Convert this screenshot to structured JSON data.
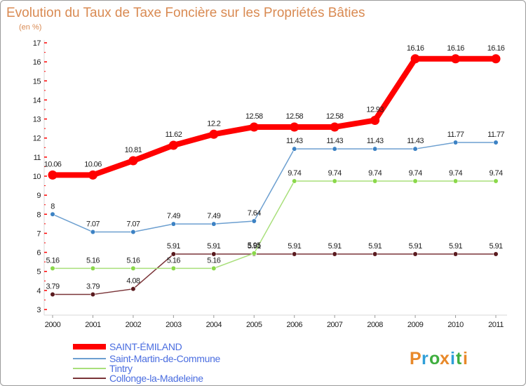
{
  "chart_data": {
    "type": "line",
    "title": "Evolution du Taux de Taxe Foncière sur les Propriétés Bâties",
    "subtitle": "(en %)",
    "xlabel": "",
    "ylabel": "",
    "ylim": [
      3,
      17
    ],
    "yticks": [
      3,
      4,
      5,
      6,
      7,
      8,
      9,
      10,
      11,
      12,
      13,
      14,
      15,
      16,
      17
    ],
    "categories": [
      "2000",
      "2001",
      "2002",
      "2003",
      "2004",
      "2005",
      "2006",
      "2007",
      "2008",
      "2009",
      "2010",
      "2011"
    ],
    "series": [
      {
        "name": "SAINT-ÉMILAND",
        "color": "#ff0000",
        "emphasis": true,
        "values": [
          10.06,
          10.06,
          10.81,
          11.62,
          12.2,
          12.58,
          12.58,
          12.58,
          12.93,
          16.16,
          16.16,
          16.16
        ],
        "labels": [
          "10.06",
          "10.06",
          "10.81",
          "11.62",
          "12.2",
          "12.58",
          "12.58",
          "12.58",
          "12.93",
          "16.16",
          "16.16",
          "16.16"
        ]
      },
      {
        "name": "Saint-Martin-de-Commune",
        "color": "#6c9fd0",
        "marker": "#3c82c4",
        "values": [
          8,
          7.07,
          7.07,
          7.49,
          7.49,
          7.64,
          11.43,
          11.43,
          11.43,
          11.43,
          11.77,
          11.77
        ],
        "labels": [
          "8",
          "7.07",
          "7.07",
          "7.49",
          "7.49",
          "7.64",
          "11.43",
          "11.43",
          "11.43",
          "11.43",
          "11.77",
          "11.77"
        ]
      },
      {
        "name": "Tintry",
        "color": "#a8df7a",
        "marker": "#8ad84a",
        "values": [
          5.16,
          5.16,
          5.16,
          5.16,
          5.16,
          5.95,
          9.74,
          9.74,
          9.74,
          9.74,
          9.74,
          9.74
        ],
        "labels": [
          "5.16",
          "5.16",
          "5.16",
          "5.16",
          "5.16",
          "5.95",
          "9.74",
          "9.74",
          "9.74",
          "9.74",
          "9.74",
          "9.74"
        ]
      },
      {
        "name": "Collonge-la-Madeleine",
        "color": "#7a3438",
        "marker": "#5a1a1e",
        "values": [
          3.79,
          3.79,
          4.08,
          5.91,
          5.91,
          5.91,
          5.91,
          5.91,
          5.91,
          5.91,
          5.91,
          5.91
        ],
        "labels": [
          "3.79",
          "3.79",
          "4.08",
          "5.91",
          "5.91",
          "5.91",
          "5.91",
          "5.91",
          "5.91",
          "5.91",
          "5.91",
          "5.91"
        ]
      }
    ],
    "legend_position": "bottom-left",
    "grid": false
  },
  "logo": {
    "letters": [
      "P",
      "r",
      "o",
      "x",
      "i",
      "t",
      "i"
    ],
    "colors": [
      "#e8892a",
      "#2f9fd8",
      "#3fae3f",
      "#e8892a",
      "#2f9fd8",
      "#3fae3f",
      "#e8892a"
    ]
  }
}
